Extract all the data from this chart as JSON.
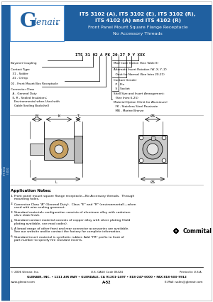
{
  "title_line1": "ITS 3102 (A), ITS 3102 (E), ITS 3102 (R),",
  "title_line2": "ITS 4102 (A) and ITS 4102 (R)",
  "title_line3": "Front Panel Mount Square Flange Receptacle",
  "title_line4": "No Accessory Threads",
  "header_bg": "#2060a0",
  "header_text_color": "#ffffff",
  "logo_bg": "#ffffff",
  "glenair_blue": "#2060a0",
  "sidebar_bg": "#2060a0",
  "page_bg": "#ffffff",
  "part_number_label": "ITS 31 02 A FK 20-27 P Y XXX",
  "left_labels_main": [
    [
      "Bayonet Coupling",
      0
    ],
    [
      "Contact Type",
      1
    ],
    [
      "  31 - Solder",
      2
    ],
    [
      "  41 - Crimp",
      3
    ],
    [
      "02 - Front Mount Box Receptacle",
      4
    ],
    [
      "Connector Class",
      5
    ],
    [
      "  A - General Duty",
      6
    ],
    [
      "  E, R - Sealed Insulators;",
      7
    ],
    [
      "    Environmental when Used with",
      8
    ],
    [
      "    Cable Sealing Backshell",
      9
    ]
  ],
  "right_labels_main": [
    [
      "Mod Code Option (See Table II)",
      0
    ],
    [
      "Alternate Insert Rotation (W, X, Y, Z)",
      1
    ],
    [
      "  Omit for Normal (See Intro 20-21)",
      2
    ],
    [
      "Contact Gender",
      3
    ],
    [
      "  P - Pin",
      4
    ],
    [
      "  S - Socket",
      5
    ],
    [
      "Shell Size and Insert Arrangement:",
      6
    ],
    [
      "  (See Intro 6-25)",
      7
    ],
    [
      "Material Option (Omit for Aluminum)",
      8
    ],
    [
      "  FK - Stainless Steel Passivate",
      9
    ],
    [
      "  MB - Marine Bronze",
      10
    ]
  ],
  "app_notes_title": "Application Notes:",
  "app_notes": [
    "Front panel mount square flange receptacle—No Accessory threads.  Through mounting holes.",
    "Connector Class “A” (General Duty).  Class “E” and “R” (environmental)—when used with wire-sealing grommet.",
    "Standard materials configuration consists of aluminum alloy with cadmium olive drab finish.",
    "Standard contact material consists of copper alloy with silver plating (Gold plating available, see mod codes).",
    "A broad range of other front and rear connector accessories are available. See our website and/or contact the factory for complete information.",
    "Standard insert material is synthetic rubber. Add “FR” prefix to front of part number to specify fire resistant inserts."
  ],
  "footer_line1": "GLENAIR, INC. • 1211 AIR WAY • GLENDALE, CA 91201-2497 • 818-247-6000 • FAX 818-500-9912",
  "footer_line2_left": "www.glenair.com",
  "footer_line2_center": "A-52",
  "footer_line2_right": "E-Mail: sales@glenair.com",
  "footer_copy": "© 2006 Glenair, Inc.",
  "footer_cage": "U.S. CAGE Code 06324",
  "footer_printed": "Printed in U.S.A.",
  "commital_text": "★Commital"
}
